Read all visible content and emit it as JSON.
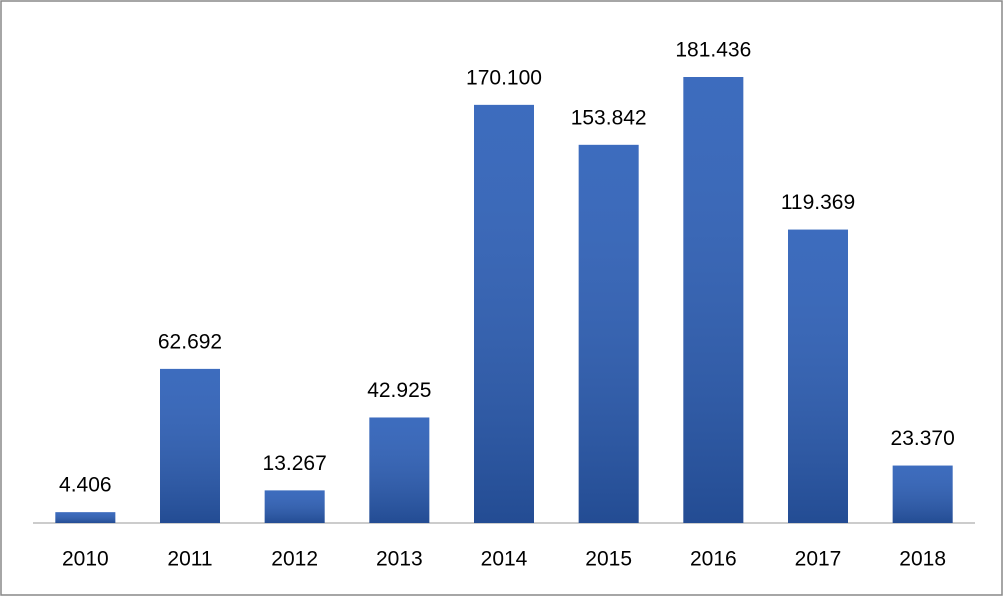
{
  "chart_data": {
    "type": "bar",
    "categories": [
      "2010",
      "2011",
      "2012",
      "2013",
      "2014",
      "2015",
      "2016",
      "2017",
      "2018"
    ],
    "values": [
      4406,
      62692,
      13267,
      42925,
      170100,
      153842,
      181436,
      119369,
      23370
    ],
    "value_labels": [
      "4.406",
      "62.692",
      "13.267",
      "42.925",
      "170.100",
      "153.842",
      "181.436",
      "119.369",
      "23.370"
    ],
    "color": "#2c5fb8"
  }
}
